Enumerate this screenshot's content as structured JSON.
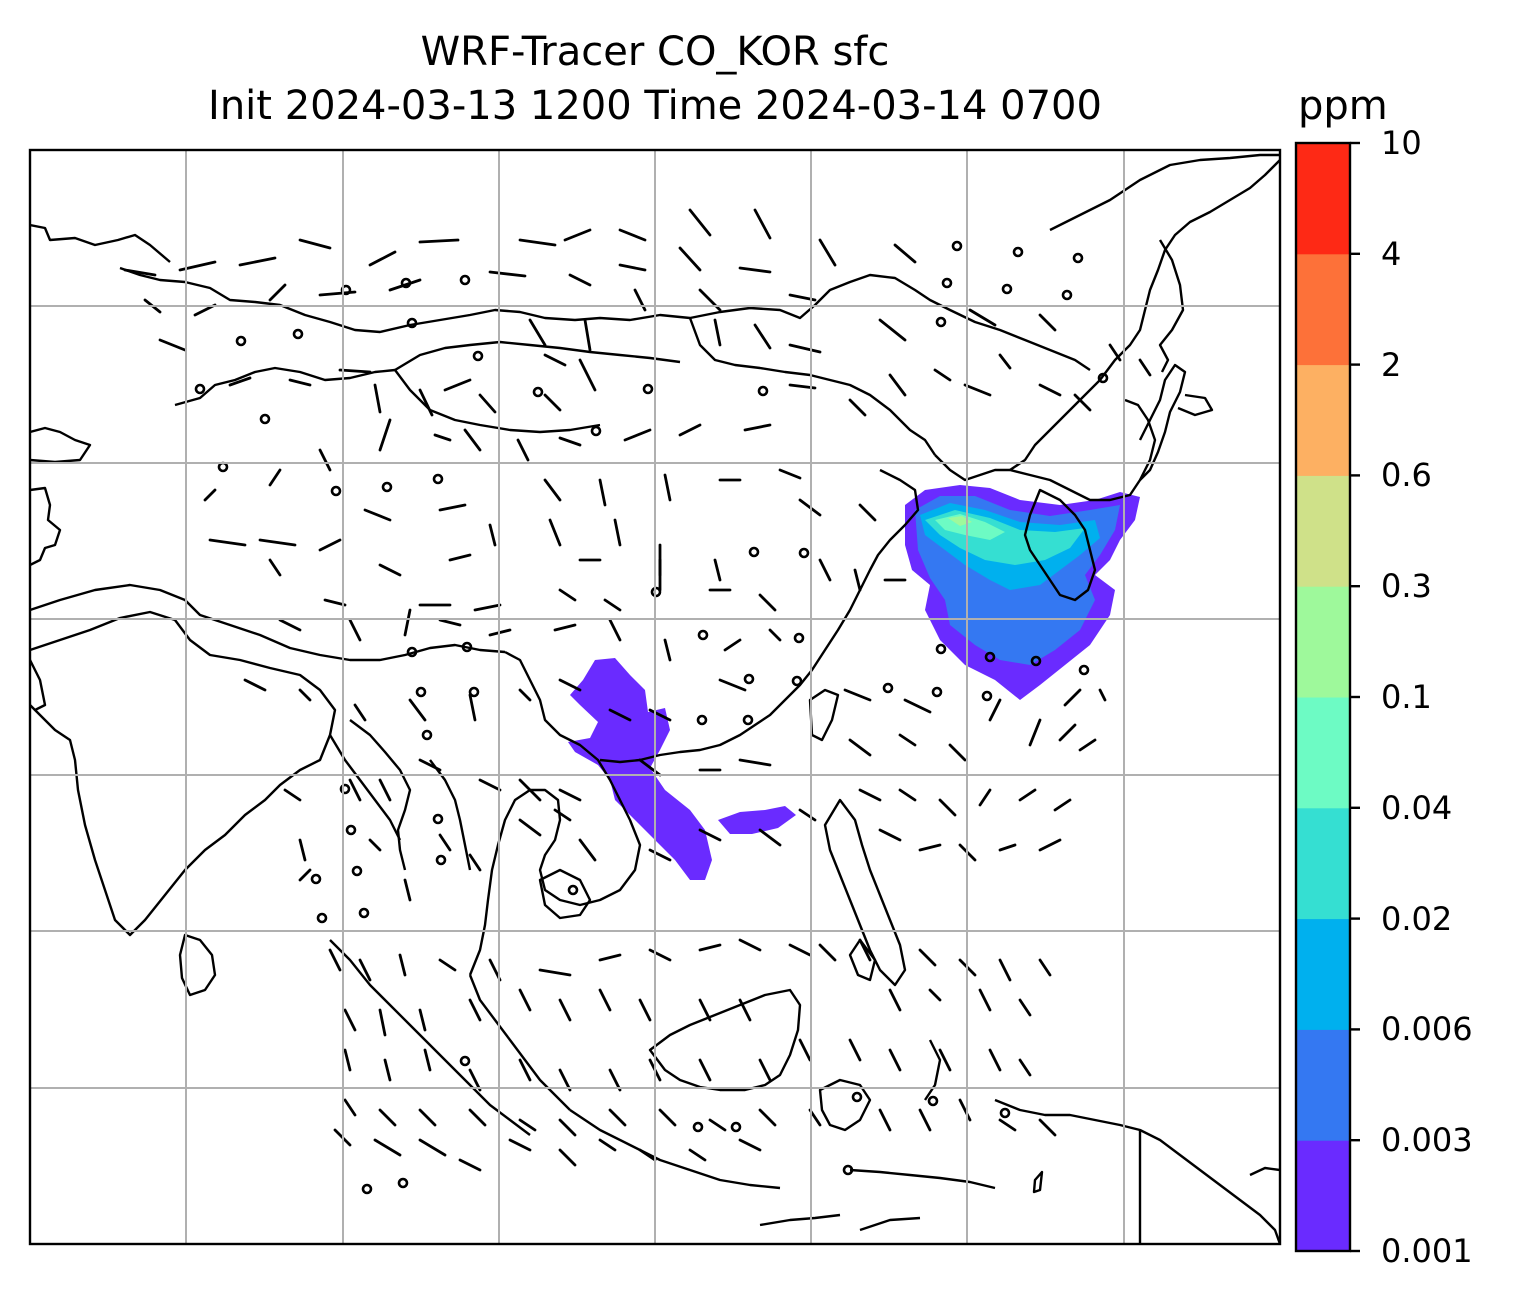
{
  "title": {
    "line1": "WRF-Tracer CO_KOR sfc",
    "line2": "Init 2024-03-13 1200 Time 2024-03-14 0700"
  },
  "colorbar": {
    "unit": "ppm",
    "levels": [
      "0.001",
      "0.003",
      "0.006",
      "0.02",
      "0.04",
      "0.1",
      "0.3",
      "0.6",
      "2",
      "4",
      "10"
    ],
    "colors": [
      "#6a2bff",
      "#3478f2",
      "#00b0ee",
      "#35dfd2",
      "#6dfbc4",
      "#9ef99b",
      "#cfe189",
      "#fdb062",
      "#fd7139",
      "#fe2915"
    ]
  },
  "map": {
    "field": "CO_KOR",
    "level": "sfc",
    "overlay": "wind barbs",
    "grid": true,
    "plumes": [
      "Korea / northeast China / Yellow Sea",
      "South China / Indochina"
    ]
  }
}
